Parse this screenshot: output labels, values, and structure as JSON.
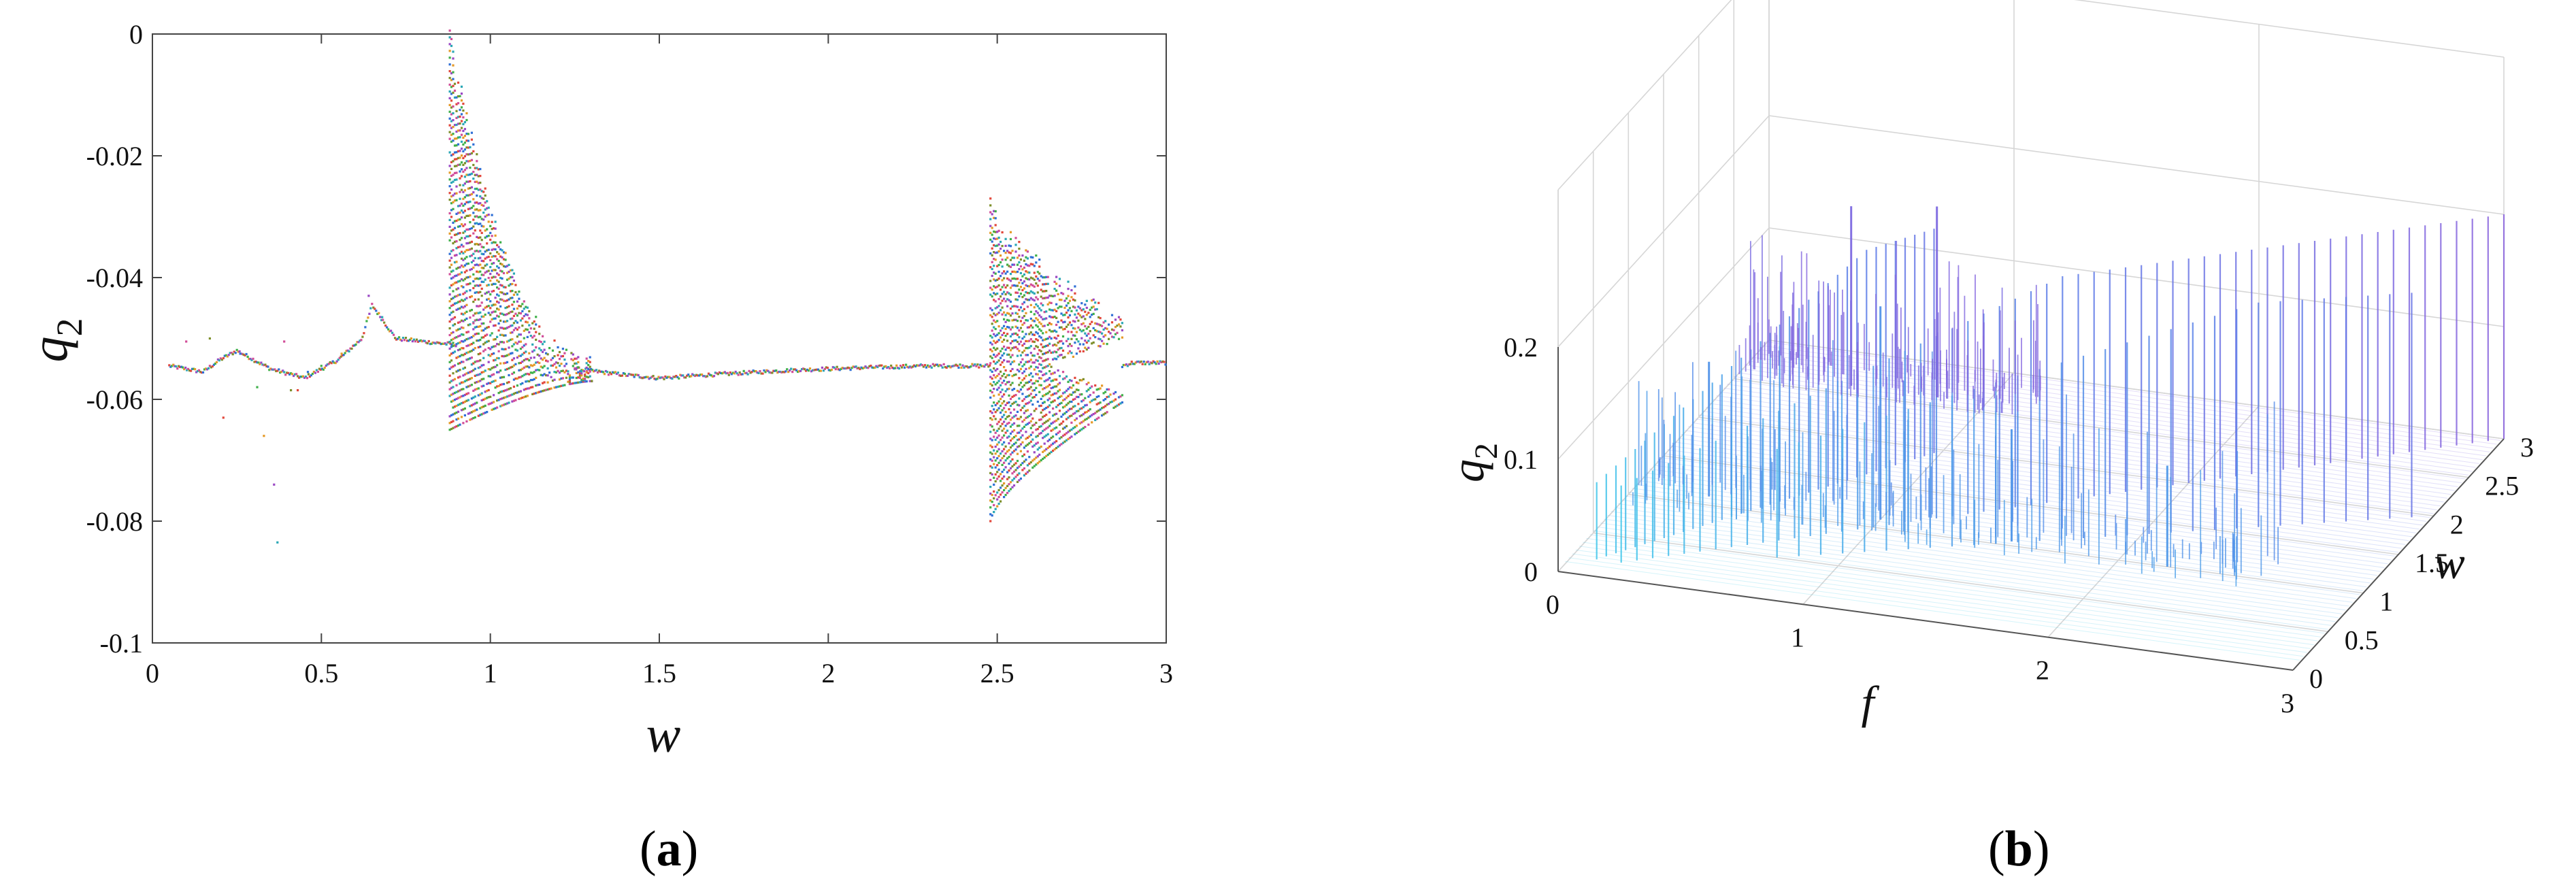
{
  "panel_labels": {
    "a": "a",
    "b": "b"
  },
  "chart_data": [
    {
      "type": "scatter",
      "xlabel": "w",
      "ylabel": "q",
      "ylabel_sub": "2",
      "xlim": [
        0,
        3
      ],
      "ylim": [
        -0.1,
        0
      ],
      "xticks": [
        {
          "v": 0,
          "label": "0"
        },
        {
          "v": 0.5,
          "label": "0.5"
        },
        {
          "v": 1,
          "label": "1"
        },
        {
          "v": 1.5,
          "label": "1.5"
        },
        {
          "v": 2,
          "label": "2"
        },
        {
          "v": 2.5,
          "label": "2.5"
        },
        {
          "v": 3,
          "label": "3"
        }
      ],
      "yticks": [
        {
          "v": 0,
          "label": "0"
        },
        {
          "v": -0.02,
          "label": "-0.02"
        },
        {
          "v": -0.04,
          "label": "-0.04"
        },
        {
          "v": -0.06,
          "label": "-0.06"
        },
        {
          "v": -0.08,
          "label": "-0.08"
        },
        {
          "v": -0.1,
          "label": "-0.1"
        }
      ],
      "grid": false,
      "marker_colors": [
        "#e2473b",
        "#2f6fd6",
        "#3fb04a",
        "#e59a28",
        "#9a48c4",
        "#2aa7b5",
        "#d14d98",
        "#7d8f2a"
      ],
      "description": "bifurcation diagram of q2 versus w",
      "curves": [
        [
          [
            0.05,
            -0.0545
          ],
          [
            0.15,
            -0.0555
          ],
          [
            0.2,
            -0.0535
          ],
          [
            0.25,
            -0.052
          ],
          [
            0.35,
            -0.055
          ],
          [
            0.45,
            -0.0565
          ],
          [
            0.55,
            -0.0535
          ],
          [
            0.62,
            -0.05
          ],
          [
            0.65,
            -0.0445
          ],
          [
            0.72,
            -0.05
          ],
          [
            0.85,
            -0.0508
          ],
          [
            0.9,
            -0.051
          ]
        ],
        [
          [
            1.25,
            -0.055
          ],
          [
            1.4,
            -0.056
          ],
          [
            1.5,
            -0.0565
          ],
          [
            1.7,
            -0.0558
          ],
          [
            1.9,
            -0.0552
          ],
          [
            2.1,
            -0.0548
          ],
          [
            2.3,
            -0.0545
          ],
          [
            2.48,
            -0.0545
          ]
        ],
        [
          [
            2.87,
            -0.0545
          ],
          [
            2.9,
            -0.054
          ],
          [
            3.0,
            -0.054
          ]
        ]
      ],
      "bands": [
        {
          "x": [
            0.88,
            1.3
          ],
          "top": [
            -0.001,
            -0.055
          ],
          "bottom": [
            -0.065,
            -0.057
          ],
          "shape": "decay",
          "step": 0.01
        },
        {
          "x": [
            2.48,
            2.87
          ],
          "top": [
            -0.029,
            -0.0485
          ],
          "bottom": [
            -0.08,
            -0.0605
          ],
          "shape": "fork",
          "step": 0.01
        }
      ],
      "scattered_points": [
        [
          0.1,
          -0.0505
        ],
        [
          0.17,
          -0.05
        ],
        [
          0.21,
          -0.063
        ],
        [
          0.26,
          -0.0525
        ],
        [
          0.31,
          -0.058
        ],
        [
          0.33,
          -0.066
        ],
        [
          0.36,
          -0.074
        ],
        [
          0.37,
          -0.0835
        ],
        [
          0.39,
          -0.0505
        ],
        [
          0.41,
          -0.0585
        ],
        [
          0.43,
          -0.0585
        ],
        [
          0.46,
          -0.0555
        ],
        [
          0.5,
          -0.0545
        ],
        [
          0.56,
          -0.0525
        ],
        [
          0.64,
          -0.043
        ],
        [
          0.68,
          -0.0465
        ],
        [
          0.95,
          -0.0475
        ]
      ]
    },
    {
      "type": "waterfall_3d",
      "xlabel": "f",
      "ylabel": "w",
      "zlabel": "q",
      "zlabel_sub": "2",
      "xlim": [
        0,
        3
      ],
      "ylim": [
        0,
        3
      ],
      "zlim": [
        0,
        0.2
      ],
      "xticks": [
        {
          "v": 0,
          "label": "0"
        },
        {
          "v": 1,
          "label": "1"
        },
        {
          "v": 2,
          "label": "2"
        },
        {
          "v": 3,
          "label": "3"
        }
      ],
      "yticks": [
        {
          "v": 0,
          "label": "0"
        },
        {
          "v": 0.5,
          "label": "0.5"
        },
        {
          "v": 1,
          "label": "1"
        },
        {
          "v": 1.5,
          "label": "1.5"
        },
        {
          "v": 2,
          "label": "2"
        },
        {
          "v": 2.5,
          "label": "2.5"
        },
        {
          "v": 3,
          "label": "3"
        }
      ],
      "zticks": [
        {
          "v": 0,
          "label": "0"
        },
        {
          "v": 0.1,
          "label": "0.1"
        },
        {
          "v": 0.2,
          "label": "0.2"
        }
      ],
      "grid": true,
      "colormap": [
        "#3bd0ea",
        "#5a7ee8",
        "#8a62dd"
      ],
      "description": "frequency spectrum of q2 across w",
      "ridges": [
        {
          "f0": 0,
          "f_per_w": 0.5,
          "w_start": 0.2,
          "w_end": 2.0,
          "peak": 0.2
        },
        {
          "f0": 0,
          "f_per_w": 1.0,
          "w_start": 0.2,
          "w_end": 3.0,
          "peak": 0.2
        },
        {
          "f0": 0,
          "f_per_w": 1.5,
          "w_start": 0.5,
          "w_end": 2.0,
          "peak": 0.2
        }
      ],
      "spike_groups": [
        {
          "w": [
            0.88,
            1.3
          ],
          "f": [
            0.0,
            2.6
          ],
          "z": [
            0.05,
            0.18
          ]
        },
        {
          "w": [
            2.48,
            2.87
          ],
          "f": [
            0.0,
            1.2
          ],
          "z": [
            0.05,
            0.16
          ]
        }
      ],
      "highlight_spikes": [
        {
          "w": 2.6,
          "f": 0.45,
          "z": 0.16
        },
        {
          "w": 2.6,
          "f": 0.8,
          "z": 0.17
        },
        {
          "w": 1.1,
          "f": 0.3,
          "z": 0.12
        },
        {
          "w": 1.1,
          "f": 1.0,
          "z": 0.19
        },
        {
          "w": 1.05,
          "f": 1.55,
          "z": 0.1
        },
        {
          "w": 1.0,
          "f": 2.2,
          "z": 0.09
        }
      ]
    }
  ]
}
